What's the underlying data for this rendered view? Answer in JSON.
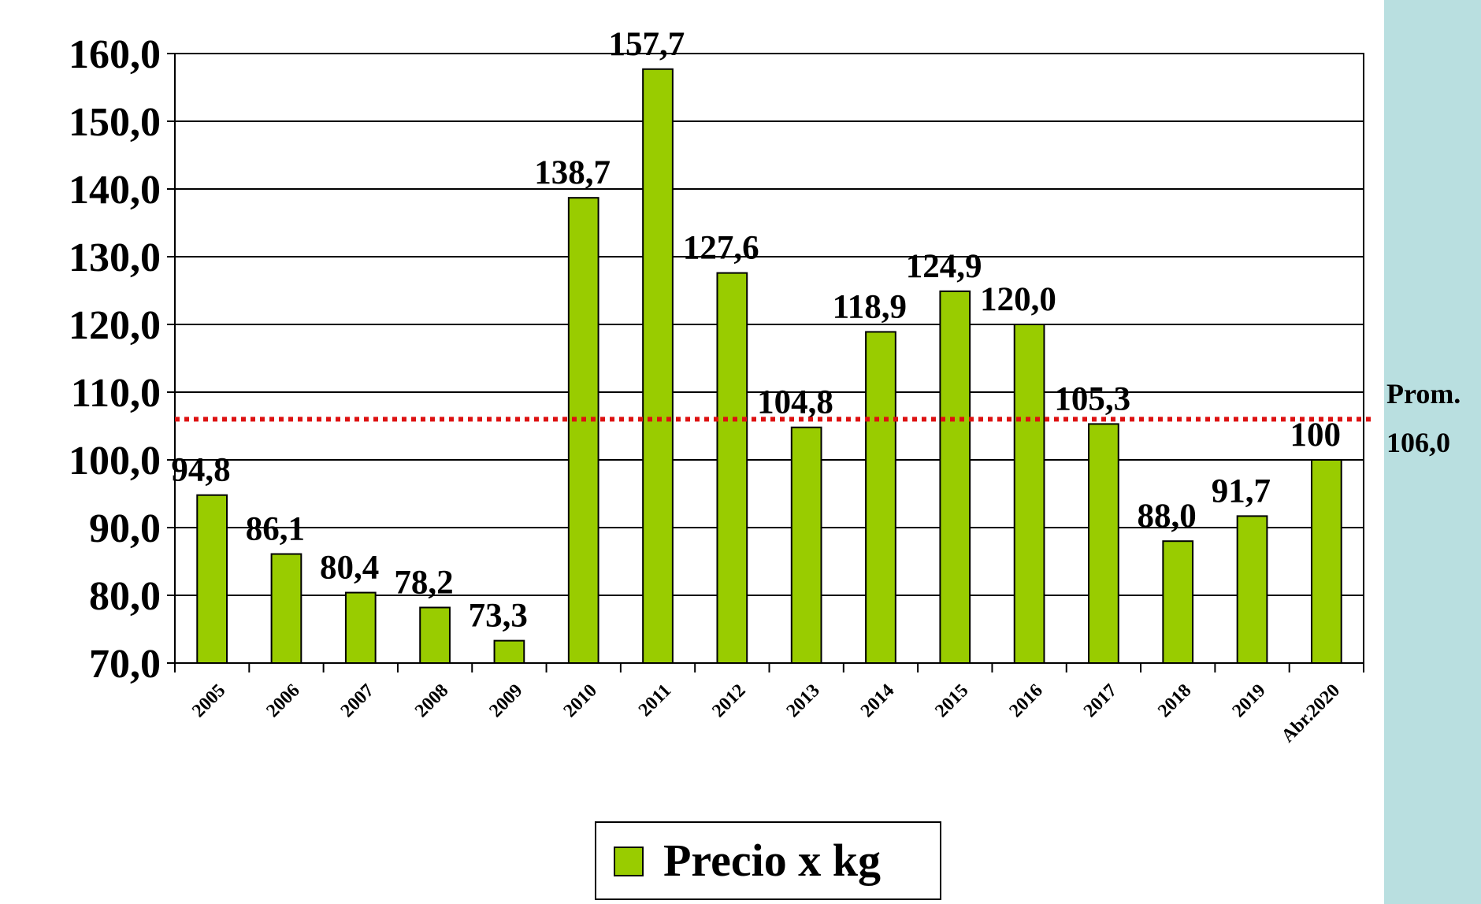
{
  "chart_data": {
    "type": "bar",
    "categories": [
      "2005",
      "2006",
      "2007",
      "2008",
      "2009",
      "2010",
      "2011",
      "2012",
      "2013",
      "2014",
      "2015",
      "2016",
      "2017",
      "2018",
      "2019",
      "Abr.2020"
    ],
    "series": [
      {
        "name": "Precio x kg",
        "color": "#99cc00",
        "values": [
          94.8,
          86.1,
          80.4,
          78.2,
          73.3,
          138.7,
          157.7,
          127.6,
          104.8,
          118.9,
          124.9,
          120.0,
          105.3,
          88.0,
          91.7,
          100
        ],
        "value_labels": [
          "94,8",
          "86,1",
          "80,4",
          "78,2",
          "73,3",
          "138,7",
          "157,7",
          "127,6",
          "104,8",
          "118,9",
          "124,9",
          "120,0",
          "105,3",
          "88,0",
          "91,7",
          "100"
        ]
      }
    ],
    "ylim": [
      70,
      160
    ],
    "yticks": [
      {
        "value": 70,
        "label": "70,0"
      },
      {
        "value": 80,
        "label": "80,0"
      },
      {
        "value": 90,
        "label": "90,0"
      },
      {
        "value": 100,
        "label": "100,0"
      },
      {
        "value": 110,
        "label": "110,0"
      },
      {
        "value": 120,
        "label": "120,0"
      },
      {
        "value": 130,
        "label": "130,0"
      },
      {
        "value": 140,
        "label": "140,0"
      },
      {
        "value": 150,
        "label": "150,0"
      },
      {
        "value": 160,
        "label": "160,0"
      }
    ],
    "grid": true,
    "reference_line": {
      "value": 106,
      "label": "106,0",
      "name": "Prom.",
      "color": "#dd1111"
    },
    "legend": "bottom"
  }
}
